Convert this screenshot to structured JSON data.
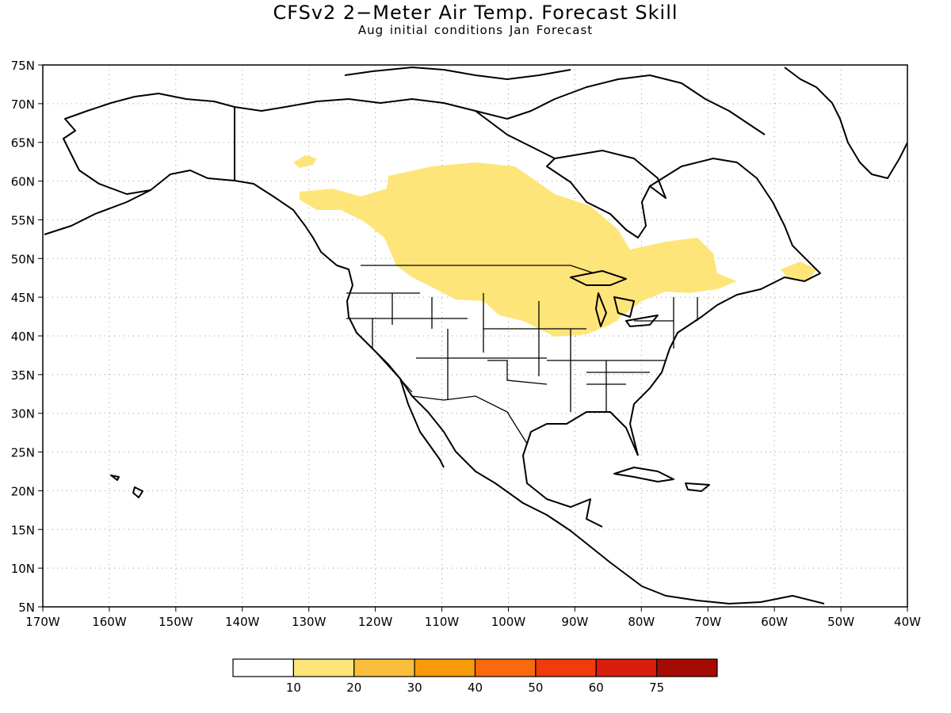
{
  "title": "CFSv2 2−Meter Air Temp. Forecast Skill",
  "subtitle": "Aug initial conditions  Jan Forecast",
  "map": {
    "lon_range": [
      -170,
      -40
    ],
    "lat_range": [
      5,
      75
    ],
    "lat_labels": [
      "75N",
      "70N",
      "65N",
      "60N",
      "55N",
      "50N",
      "45N",
      "40N",
      "35N",
      "30N",
      "25N",
      "20N",
      "15N",
      "10N",
      "5N"
    ],
    "lon_labels": [
      "170W",
      "160W",
      "150W",
      "140W",
      "130W",
      "120W",
      "110W",
      "100W",
      "90W",
      "80W",
      "70W",
      "60W",
      "50W",
      "40W"
    ],
    "grid": "dotted",
    "land_outline_color": "#000000",
    "shaded_region_color": "#fde57a"
  },
  "colorbar": {
    "colors": [
      "#ffffff",
      "#fde57a",
      "#fbbd3c",
      "#f99a0a",
      "#f96a0e",
      "#f03b0b",
      "#d81d0c",
      "#a60a05"
    ],
    "labels": [
      "10",
      "20",
      "30",
      "40",
      "50",
      "60",
      "75"
    ]
  }
}
